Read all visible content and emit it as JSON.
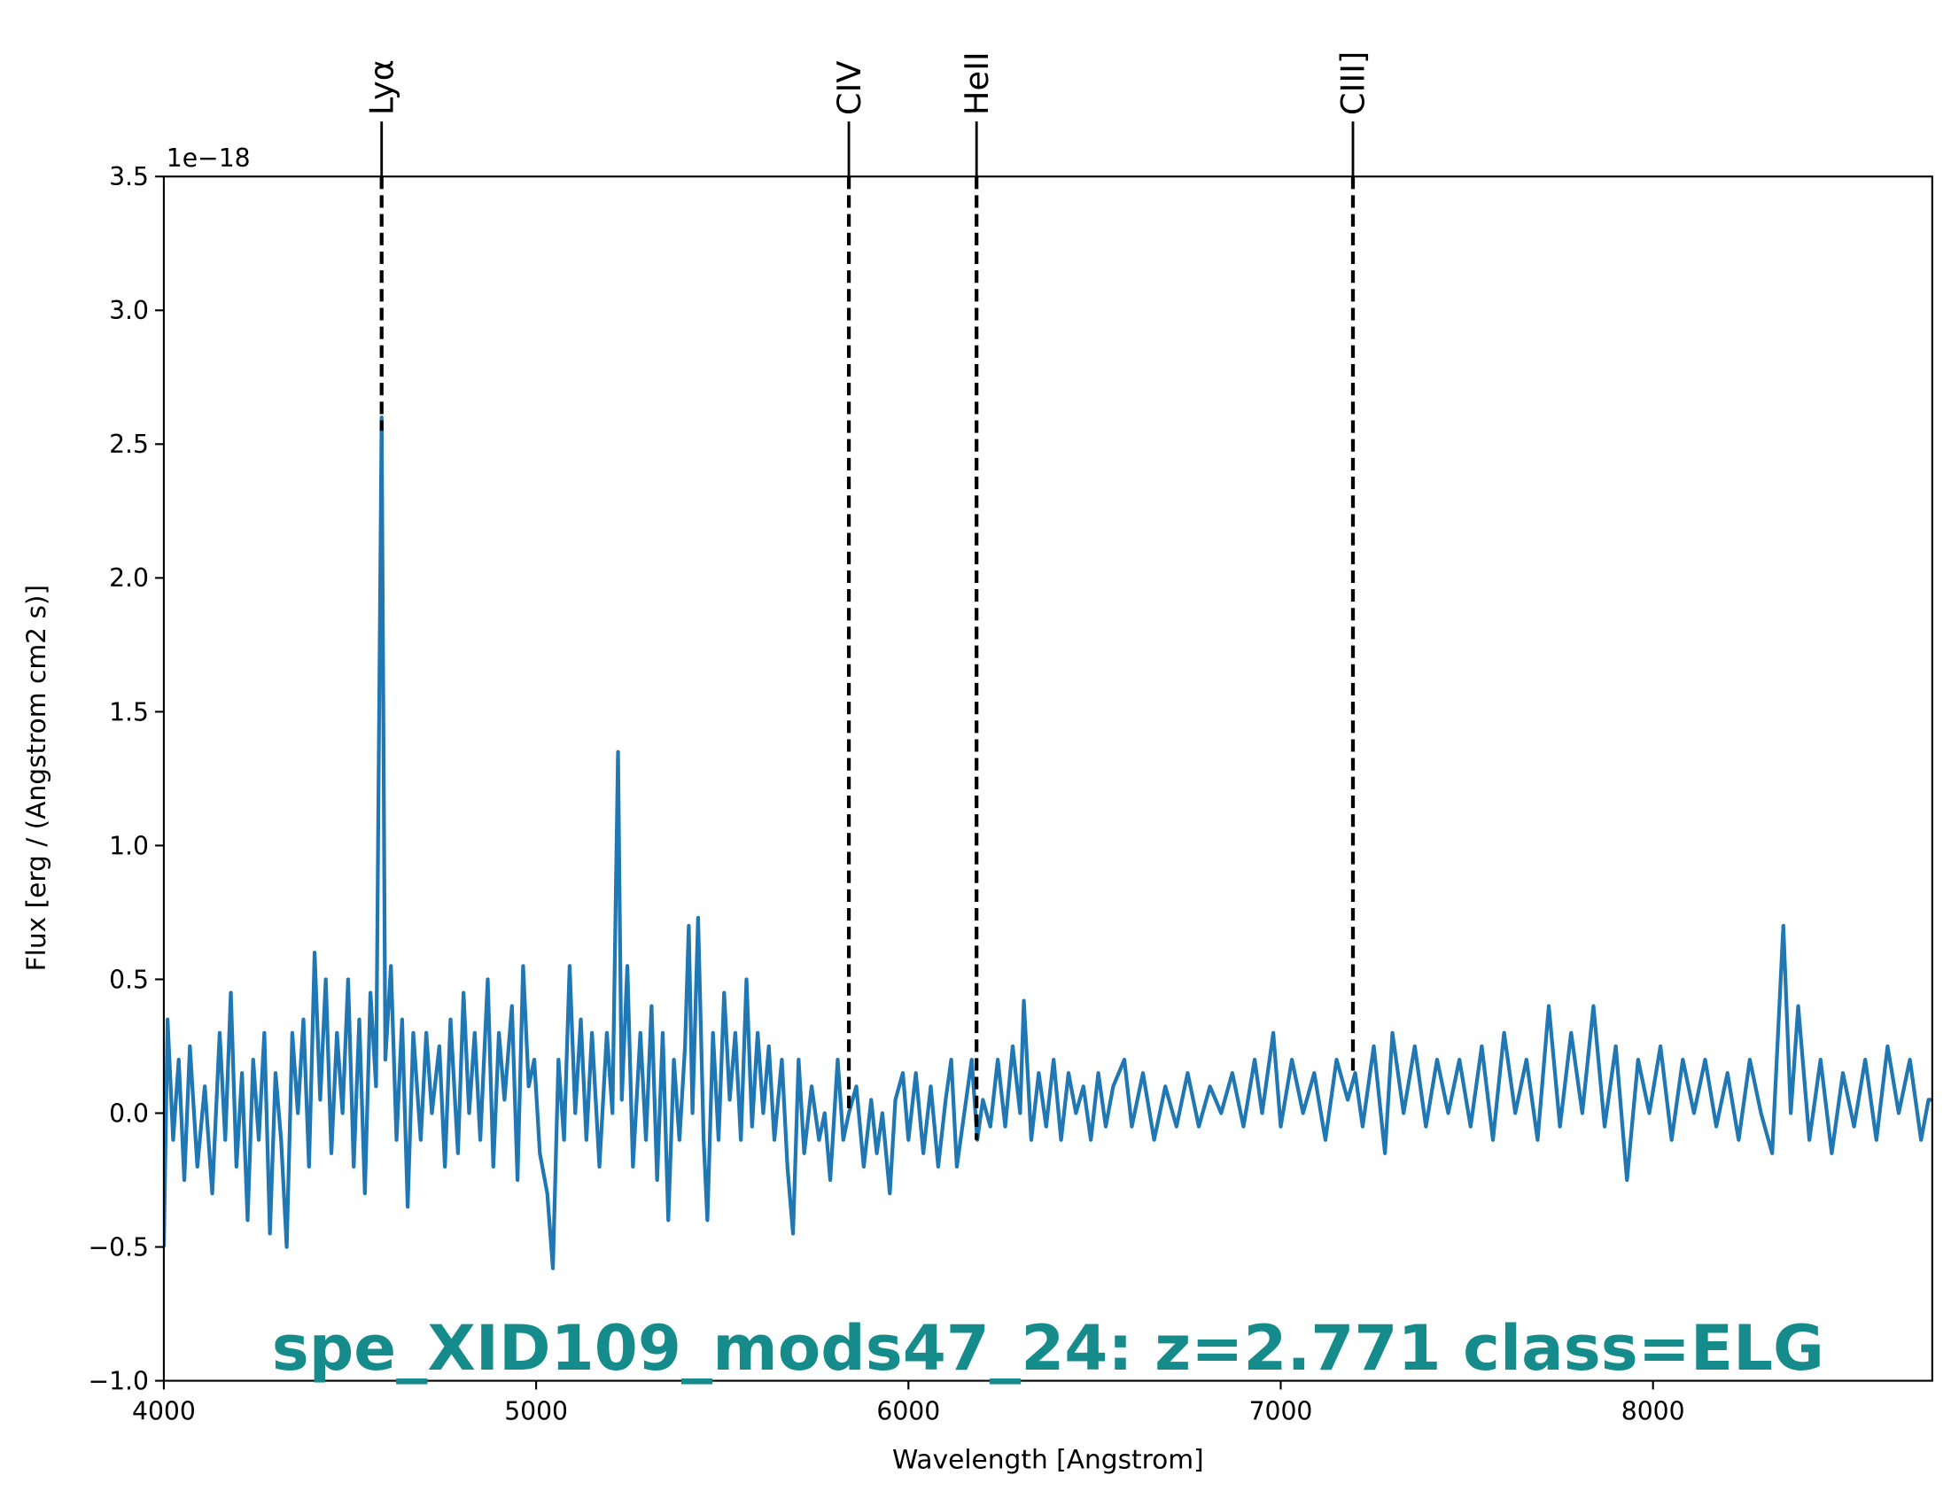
{
  "chart_data": {
    "type": "line",
    "annotation": "spe_XID109_mods47_24: z=2.771 class=ELG",
    "xlabel": "Wavelength [Angstrom]",
    "ylabel": "Flux [erg / (Angstrom cm2 s)]",
    "y_offset_text": "1e−18",
    "xlim": [
      4000,
      8750
    ],
    "ylim": [
      -1.0,
      3.5
    ],
    "xticks": [
      4000,
      5000,
      6000,
      7000,
      8000
    ],
    "yticks": [
      {
        "value": -1.0,
        "label": "−1.0"
      },
      {
        "value": -0.5,
        "label": "−0.5"
      },
      {
        "value": 0.0,
        "label": "0.0"
      },
      {
        "value": 0.5,
        "label": "0.5"
      },
      {
        "value": 1.0,
        "label": "1.0"
      },
      {
        "value": 1.5,
        "label": "1.5"
      },
      {
        "value": 2.0,
        "label": "2.0"
      },
      {
        "value": 2.5,
        "label": "2.5"
      },
      {
        "value": 3.0,
        "label": "3.0"
      },
      {
        "value": 3.5,
        "label": "3.5"
      }
    ],
    "lines": [
      {
        "label": "Lyα",
        "x": 4585,
        "y": 2.55
      },
      {
        "label": "CIV",
        "x": 5840,
        "y": 0.0
      },
      {
        "label": "HeII",
        "x": 6183,
        "y": -0.1
      },
      {
        "label": "CIII]",
        "x": 7194,
        "y": 0.15
      }
    ],
    "line_color": "#000000",
    "series": [
      {
        "color": "#1f77b4",
        "x": [
          4000,
          4010,
          4025,
          4040,
          4055,
          4070,
          4090,
          4110,
          4130,
          4150,
          4165,
          4180,
          4195,
          4210,
          4225,
          4240,
          4255,
          4270,
          4285,
          4300,
          4315,
          4330,
          4345,
          4360,
          4375,
          4390,
          4405,
          4420,
          4435,
          4450,
          4465,
          4480,
          4495,
          4510,
          4525,
          4540,
          4555,
          4570,
          4585,
          4595,
          4610,
          4625,
          4640,
          4655,
          4670,
          4690,
          4705,
          4720,
          4740,
          4755,
          4770,
          4790,
          4805,
          4820,
          4835,
          4850,
          4870,
          4885,
          4900,
          4915,
          4935,
          4950,
          4965,
          4980,
          4995,
          5010,
          5030,
          5045,
          5060,
          5075,
          5090,
          5105,
          5120,
          5135,
          5150,
          5170,
          5190,
          5205,
          5220,
          5230,
          5245,
          5260,
          5280,
          5295,
          5310,
          5325,
          5340,
          5355,
          5370,
          5385,
          5400,
          5410,
          5420,
          5435,
          5450,
          5460,
          5475,
          5490,
          5505,
          5520,
          5535,
          5550,
          5565,
          5580,
          5595,
          5610,
          5625,
          5640,
          5660,
          5675,
          5690,
          5705,
          5720,
          5740,
          5760,
          5775,
          5790,
          5810,
          5825,
          5840,
          5860,
          5880,
          5900,
          5915,
          5930,
          5950,
          5965,
          5985,
          6000,
          6020,
          6040,
          6060,
          6080,
          6100,
          6115,
          6130,
          6150,
          6170,
          6185,
          6200,
          6220,
          6240,
          6260,
          6280,
          6300,
          6310,
          6330,
          6350,
          6370,
          6390,
          6410,
          6430,
          6450,
          6470,
          6490,
          6510,
          6530,
          6550,
          6580,
          6600,
          6630,
          6660,
          6690,
          6720,
          6750,
          6780,
          6810,
          6840,
          6870,
          6900,
          6930,
          6950,
          6980,
          7000,
          7030,
          7060,
          7090,
          7120,
          7150,
          7180,
          7200,
          7220,
          7250,
          7280,
          7300,
          7330,
          7360,
          7390,
          7420,
          7450,
          7480,
          7510,
          7540,
          7570,
          7600,
          7630,
          7660,
          7690,
          7720,
          7750,
          7780,
          7810,
          7840,
          7870,
          7900,
          7930,
          7960,
          7990,
          8020,
          8050,
          8080,
          8110,
          8140,
          8170,
          8200,
          8230,
          8260,
          8290,
          8320,
          8350,
          8370,
          8390,
          8420,
          8450,
          8480,
          8510,
          8540,
          8570,
          8600,
          8630,
          8660,
          8690,
          8720,
          8740,
          8750
        ],
        "values": [
          -0.5,
          0.35,
          -0.1,
          0.2,
          -0.25,
          0.25,
          -0.2,
          0.1,
          -0.3,
          0.3,
          -0.1,
          0.45,
          -0.2,
          0.15,
          -0.4,
          0.2,
          -0.1,
          0.3,
          -0.45,
          0.15,
          -0.1,
          -0.5,
          0.3,
          0.0,
          0.35,
          -0.2,
          0.6,
          0.05,
          0.5,
          -0.15,
          0.3,
          0.0,
          0.5,
          -0.2,
          0.35,
          -0.3,
          0.45,
          0.1,
          2.6,
          0.2,
          0.55,
          -0.1,
          0.35,
          -0.35,
          0.3,
          -0.1,
          0.3,
          0.0,
          0.25,
          -0.2,
          0.35,
          -0.15,
          0.45,
          0.0,
          0.3,
          -0.1,
          0.5,
          -0.2,
          0.3,
          0.05,
          0.4,
          -0.25,
          0.55,
          0.1,
          0.2,
          -0.15,
          -0.3,
          -0.58,
          0.2,
          -0.1,
          0.55,
          0.0,
          0.35,
          -0.1,
          0.3,
          -0.2,
          0.3,
          0.0,
          1.35,
          0.05,
          0.55,
          -0.2,
          0.3,
          -0.1,
          0.4,
          -0.25,
          0.3,
          -0.4,
          0.2,
          -0.1,
          0.25,
          0.7,
          0.0,
          0.73,
          -0.1,
          -0.4,
          0.3,
          -0.1,
          0.45,
          0.05,
          0.3,
          -0.1,
          0.5,
          -0.05,
          0.3,
          0.0,
          0.25,
          -0.1,
          0.2,
          -0.2,
          -0.45,
          0.2,
          -0.15,
          0.1,
          -0.1,
          0.0,
          -0.25,
          0.2,
          -0.1,
          0.0,
          0.1,
          -0.2,
          0.05,
          -0.15,
          0.0,
          -0.3,
          0.05,
          0.15,
          -0.1,
          0.15,
          -0.15,
          0.1,
          -0.2,
          0.05,
          0.2,
          -0.2,
          0.0,
          0.2,
          -0.1,
          0.05,
          -0.05,
          0.2,
          -0.05,
          0.25,
          0.0,
          0.42,
          -0.1,
          0.15,
          -0.05,
          0.2,
          -0.1,
          0.15,
          0.0,
          0.1,
          -0.1,
          0.15,
          -0.05,
          0.1,
          0.2,
          -0.05,
          0.15,
          -0.1,
          0.1,
          -0.05,
          0.15,
          -0.05,
          0.1,
          0.0,
          0.15,
          -0.05,
          0.2,
          0.0,
          0.3,
          -0.05,
          0.2,
          0.0,
          0.15,
          -0.1,
          0.2,
          0.05,
          0.15,
          -0.05,
          0.25,
          -0.15,
          0.3,
          0.0,
          0.25,
          -0.05,
          0.2,
          0.0,
          0.2,
          -0.05,
          0.25,
          -0.1,
          0.3,
          0.0,
          0.2,
          -0.1,
          0.4,
          -0.05,
          0.3,
          0.0,
          0.4,
          -0.05,
          0.25,
          -0.25,
          0.2,
          0.0,
          0.25,
          -0.1,
          0.2,
          0.0,
          0.2,
          -0.05,
          0.15,
          -0.1,
          0.2,
          0.0,
          -0.15,
          0.7,
          0.0,
          0.4,
          -0.1,
          0.2,
          -0.15,
          0.15,
          -0.05,
          0.2,
          -0.1,
          0.25,
          0.0,
          0.2,
          -0.1,
          0.05,
          0.05
        ]
      }
    ]
  }
}
